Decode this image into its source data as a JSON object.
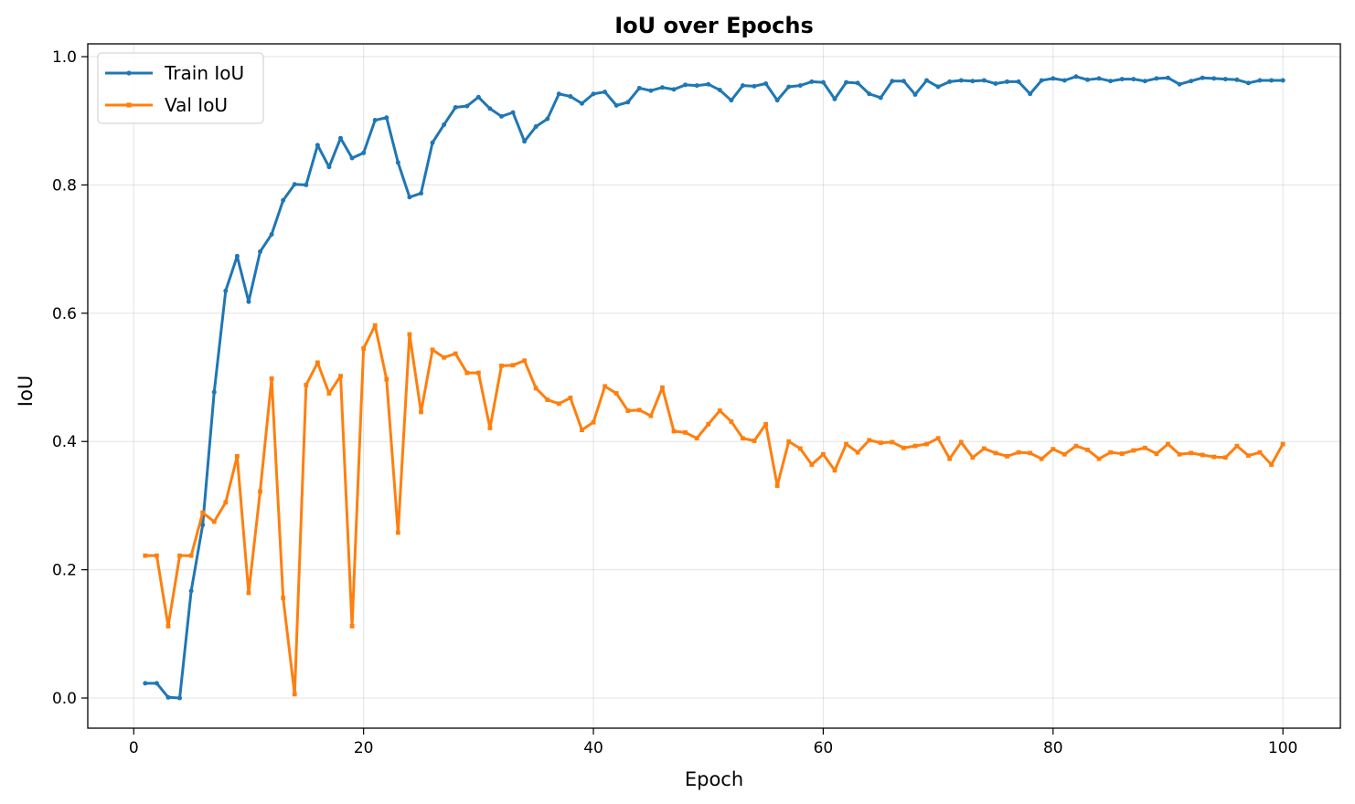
{
  "chart_data": {
    "type": "line",
    "title": "IoU over Epochs",
    "xlabel": "Epoch",
    "ylabel": "IoU",
    "xlim": [
      -4,
      105
    ],
    "ylim": [
      -0.047,
      1.02
    ],
    "xticks": [
      0,
      20,
      40,
      60,
      80,
      100
    ],
    "yticks": [
      0.0,
      0.2,
      0.4,
      0.6,
      0.8,
      1.0
    ],
    "xtick_labels": [
      "0",
      "20",
      "40",
      "60",
      "80",
      "100"
    ],
    "ytick_labels": [
      "0.0",
      "0.2",
      "0.4",
      "0.6",
      "0.8",
      "1.0"
    ],
    "grid": true,
    "legend_position": "top-left",
    "x": [
      1,
      2,
      3,
      4,
      5,
      6,
      7,
      8,
      9,
      10,
      11,
      12,
      13,
      14,
      15,
      16,
      17,
      18,
      19,
      20,
      21,
      22,
      23,
      24,
      25,
      26,
      27,
      28,
      29,
      30,
      31,
      32,
      33,
      34,
      35,
      36,
      37,
      38,
      39,
      40,
      41,
      42,
      43,
      44,
      45,
      46,
      47,
      48,
      49,
      50,
      51,
      52,
      53,
      54,
      55,
      56,
      57,
      58,
      59,
      60,
      61,
      62,
      63,
      64,
      65,
      66,
      67,
      68,
      69,
      70,
      71,
      72,
      73,
      74,
      75,
      76,
      77,
      78,
      79,
      80,
      81,
      82,
      83,
      84,
      85,
      86,
      87,
      88,
      89,
      90,
      91,
      92,
      93,
      94,
      95,
      96,
      97,
      98,
      99,
      100
    ],
    "series": [
      {
        "name": "Train IoU",
        "color": "#1f77b4",
        "marker": "circle",
        "values": [
          0.023,
          0.023,
          0.001,
          0.0,
          0.167,
          0.27,
          0.477,
          0.635,
          0.689,
          0.618,
          0.696,
          0.723,
          0.776,
          0.801,
          0.8,
          0.862,
          0.828,
          0.873,
          0.842,
          0.85,
          0.901,
          0.905,
          0.835,
          0.781,
          0.787,
          0.866,
          0.894,
          0.921,
          0.923,
          0.937,
          0.919,
          0.907,
          0.913,
          0.868,
          0.891,
          0.903,
          0.942,
          0.938,
          0.927,
          0.942,
          0.945,
          0.924,
          0.929,
          0.951,
          0.947,
          0.952,
          0.949,
          0.956,
          0.955,
          0.957,
          0.948,
          0.932,
          0.955,
          0.954,
          0.958,
          0.932,
          0.953,
          0.955,
          0.961,
          0.96,
          0.934,
          0.96,
          0.959,
          0.942,
          0.936,
          0.962,
          0.962,
          0.941,
          0.963,
          0.953,
          0.961,
          0.963,
          0.962,
          0.963,
          0.958,
          0.961,
          0.961,
          0.942,
          0.963,
          0.966,
          0.963,
          0.969,
          0.964,
          0.966,
          0.962,
          0.965,
          0.965,
          0.962,
          0.966,
          0.967,
          0.957,
          0.962,
          0.967,
          0.966,
          0.965,
          0.964,
          0.959,
          0.963,
          0.963,
          0.963
        ]
      },
      {
        "name": "Val IoU",
        "color": "#ff7f0e",
        "marker": "square",
        "values": [
          0.222,
          0.222,
          0.112,
          0.222,
          0.222,
          0.289,
          0.275,
          0.305,
          0.377,
          0.164,
          0.322,
          0.498,
          0.156,
          0.006,
          0.488,
          0.523,
          0.475,
          0.502,
          0.112,
          0.545,
          0.581,
          0.497,
          0.258,
          0.567,
          0.446,
          0.543,
          0.531,
          0.537,
          0.507,
          0.507,
          0.421,
          0.518,
          0.519,
          0.526,
          0.483,
          0.465,
          0.459,
          0.468,
          0.418,
          0.43,
          0.486,
          0.475,
          0.448,
          0.449,
          0.44,
          0.484,
          0.416,
          0.414,
          0.405,
          0.427,
          0.448,
          0.431,
          0.405,
          0.401,
          0.427,
          0.331,
          0.4,
          0.389,
          0.364,
          0.38,
          0.355,
          0.396,
          0.383,
          0.402,
          0.398,
          0.399,
          0.39,
          0.393,
          0.396,
          0.405,
          0.373,
          0.399,
          0.375,
          0.389,
          0.382,
          0.377,
          0.383,
          0.382,
          0.373,
          0.388,
          0.38,
          0.393,
          0.387,
          0.373,
          0.383,
          0.381,
          0.386,
          0.39,
          0.381,
          0.396,
          0.38,
          0.382,
          0.379,
          0.376,
          0.375,
          0.393,
          0.378,
          0.383,
          0.364,
          0.396
        ]
      }
    ]
  }
}
